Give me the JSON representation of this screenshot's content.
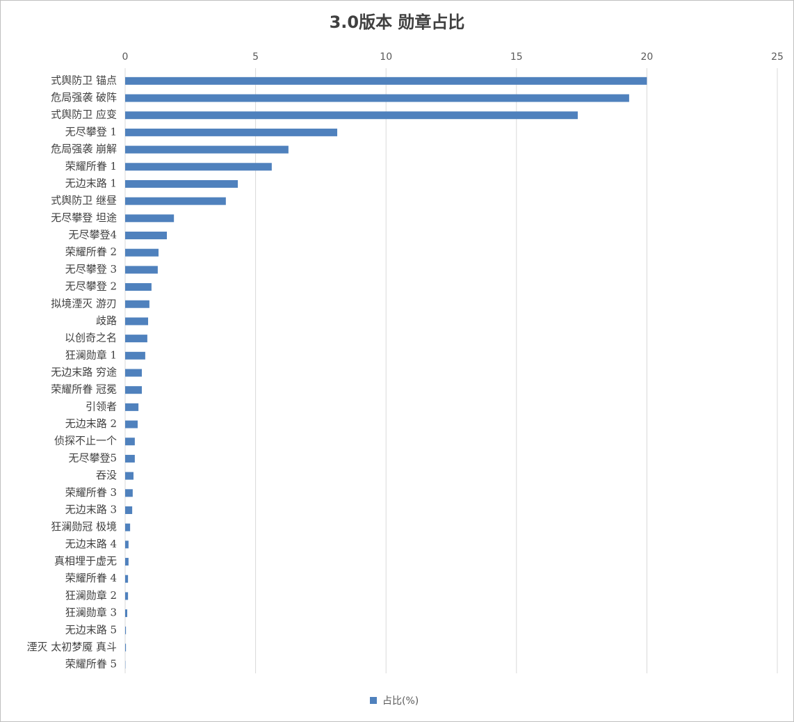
{
  "chart_data": {
    "type": "barh",
    "title": "3.0版本 勋章占比",
    "categories": [
      "式舆防卫 锚点",
      "危局强袭 破阵",
      "式舆防卫 应变",
      "无尽攀登 1",
      "危局强袭 崩解",
      "荣耀所眷 1",
      "无边末路 1",
      "式舆防卫 继昼",
      "无尽攀登 坦途",
      "无尽攀登4",
      "荣耀所眷 2",
      "无尽攀登 3",
      "无尽攀登 2",
      "拟境湮灭 游刃",
      "歧路",
      "以创奇之名",
      "狂澜勋章 1",
      "无边末路 穷途",
      "荣耀所眷 冠冕",
      "引领者",
      "无边末路 2",
      "侦探不止一个",
      "无尽攀登5",
      "吞没",
      "荣耀所眷 3",
      "无边末路 3",
      "狂澜勋冠 极境",
      "无边末路 4",
      "真相埋于虚无",
      "荣耀所眷 4",
      "狂澜勋章 2",
      "狂澜勋章 3",
      "无边末路 5",
      "湮灭 太初梦魇 真斗",
      "荣耀所眷 5"
    ],
    "series": [
      {
        "name": "占比(%)",
        "color": "#4f81bd",
        "values": [
          20.0,
          19.32,
          17.35,
          8.13,
          6.26,
          5.62,
          4.32,
          3.86,
          1.87,
          1.6,
          1.28,
          1.25,
          1.01,
          0.93,
          0.88,
          0.85,
          0.77,
          0.64,
          0.64,
          0.51,
          0.48,
          0.37,
          0.37,
          0.32,
          0.29,
          0.27,
          0.19,
          0.13,
          0.13,
          0.11,
          0.11,
          0.08,
          0.03,
          0.03,
          0.01
        ]
      }
    ],
    "xlim": [
      0,
      25
    ],
    "xticks": [
      0,
      5,
      10,
      15,
      20,
      25
    ],
    "grid": true,
    "legend": "bottom"
  }
}
